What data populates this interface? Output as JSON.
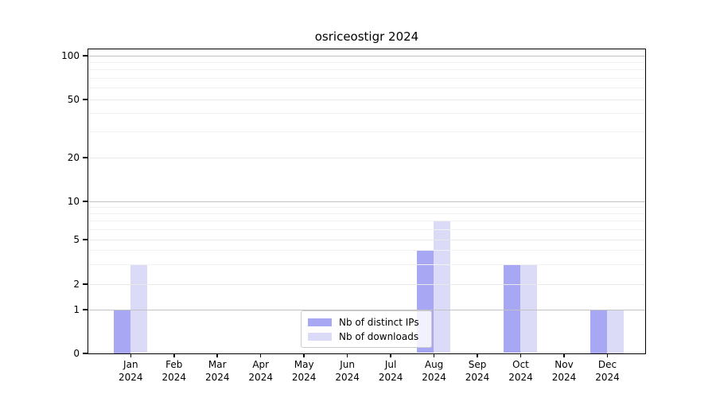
{
  "chart_data": {
    "type": "bar",
    "title": "osriceostigr 2024",
    "x_months": [
      "Jan",
      "Feb",
      "Mar",
      "Apr",
      "May",
      "Jun",
      "Jul",
      "Aug",
      "Sep",
      "Oct",
      "Nov",
      "Dec"
    ],
    "x_year": "2024",
    "series": [
      {
        "name": "Nb of distinct IPs",
        "color": "#a7a7f3",
        "values": [
          1,
          0,
          0,
          0,
          0,
          0,
          0,
          4,
          0,
          3,
          0,
          1
        ]
      },
      {
        "name": "Nb of downloads",
        "color": "#dbdbf8",
        "values": [
          3,
          0,
          0,
          0,
          0,
          0,
          0,
          7,
          0,
          3,
          0,
          1
        ]
      }
    ],
    "yticks": [
      0,
      1,
      2,
      5,
      10,
      20,
      50,
      100
    ],
    "yticks_minor": [
      3,
      4,
      6,
      7,
      8,
      9,
      30,
      40,
      60,
      70,
      80,
      90
    ],
    "ylim": [
      0,
      110
    ],
    "yscale": "log-like (linear 0-1, logarithmic above 1)",
    "grid": "horizontal",
    "legend": {
      "position": "lower center"
    }
  }
}
